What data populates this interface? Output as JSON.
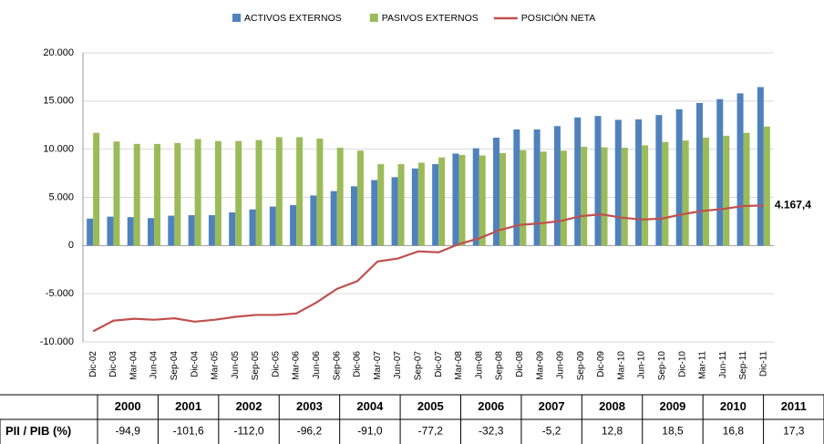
{
  "chart_data": {
    "type": "bar_line",
    "categories": [
      "Dic-02",
      "Dic-03",
      "Mar-04",
      "Jun-04",
      "Sep-04",
      "Dic-04",
      "Mar-05",
      "Jun-05",
      "Sep-05",
      "Dic-05",
      "Mar-06",
      "Jun-06",
      "Sep-06",
      "Dic-06",
      "Mar-07",
      "Jun-07",
      "Sep-07",
      "Dic-07",
      "Mar-08",
      "Jun-08",
      "Sep-08",
      "Dic-08",
      "Mar-09",
      "Jun-09",
      "Sep-09",
      "Dic-09",
      "Mar-10",
      "Jun-10",
      "Sep-10",
      "Dic-10",
      "Mar-11",
      "Jun-11",
      "Sep-11",
      "Dic-11"
    ],
    "series": [
      {
        "name": "ACTIVOS EXTERNOS",
        "type": "bar",
        "color": "#4f81bd",
        "values": [
          2800,
          3000,
          2950,
          2850,
          3100,
          3150,
          3150,
          3450,
          3750,
          4050,
          4200,
          5200,
          5650,
          6150,
          6800,
          7100,
          8000,
          8450,
          9550,
          10100,
          11200,
          12050,
          12050,
          12400,
          13300,
          13450,
          13050,
          13100,
          13550,
          14150,
          14800,
          15200,
          15800,
          16450
        ]
      },
      {
        "name": "PASIVOS EXTERNOS",
        "type": "bar",
        "color": "#9bbb59",
        "values": [
          11700,
          10800,
          10550,
          10550,
          10650,
          11050,
          10850,
          10850,
          10950,
          11250,
          11250,
          11100,
          10150,
          9850,
          8450,
          8450,
          8600,
          9150,
          9400,
          9350,
          9600,
          9900,
          9750,
          9850,
          10250,
          10200,
          10150,
          10400,
          10750,
          10900,
          11200,
          11400,
          11700,
          12350
        ]
      },
      {
        "name": "POSICIÓN NETA",
        "type": "line",
        "color": "#c0504d",
        "values": [
          -8900,
          -7800,
          -7600,
          -7700,
          -7550,
          -7900,
          -7700,
          -7400,
          -7200,
          -7200,
          -7050,
          -5900,
          -4500,
          -3700,
          -1650,
          -1350,
          -600,
          -700,
          150,
          750,
          1600,
          2150,
          2300,
          2550,
          3050,
          3250,
          2900,
          2700,
          2800,
          3250,
          3600,
          3800,
          4100,
          4167.4
        ]
      }
    ],
    "annotation": "4.167,4",
    "ylim": [
      -10000,
      20000
    ],
    "yticks": [
      {
        "value": -10000,
        "label": "-10.000"
      },
      {
        "value": -5000,
        "label": "-5.000"
      },
      0,
      {
        "value": 5000,
        "label": "5.000"
      },
      {
        "value": 10000,
        "label": "10.000"
      },
      {
        "value": 15000,
        "label": "15.000"
      },
      {
        "value": 20000,
        "label": "20.000"
      }
    ],
    "grid": true,
    "legend": "top"
  },
  "table": {
    "header": [
      "2000",
      "2001",
      "2002",
      "2003",
      "2004",
      "2005",
      "2006",
      "2007",
      "2008",
      "2009",
      "2010",
      "2011"
    ],
    "row_label": "PII / PIB (%)",
    "values": [
      "-94,9",
      "-101,6",
      "-112,0",
      "-96,2",
      "-91,0",
      "-77,2",
      "-32,3",
      "-5,2",
      "12,8",
      "18,5",
      "16,8",
      "17,3"
    ]
  }
}
